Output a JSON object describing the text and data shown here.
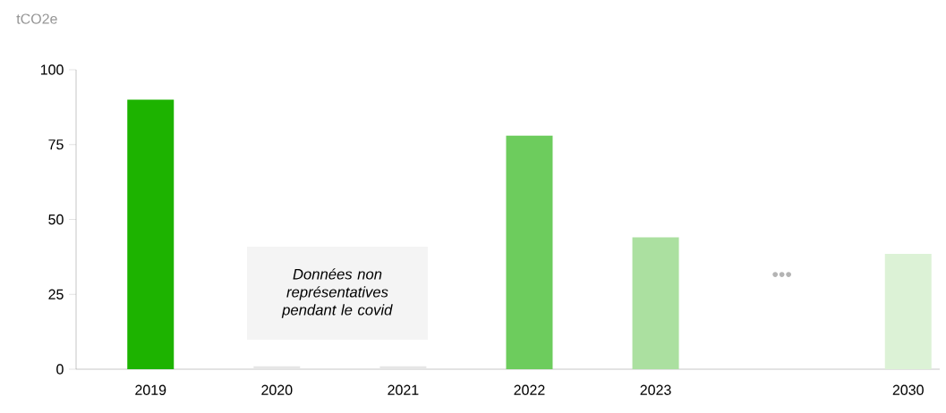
{
  "chart_data": {
    "type": "bar",
    "ylabel": "tCO2e",
    "categories": [
      "2019",
      "2020",
      "2021",
      "2022",
      "2023",
      null,
      "2030"
    ],
    "values": [
      90,
      1,
      1,
      78,
      44,
      null,
      38.5
    ],
    "colors": [
      "#1db300",
      "#e6e6e6",
      "#e6e6e6",
      "#6dcc5d",
      "#abe0a0",
      "#cccccc",
      "#dcf2d6"
    ],
    "ylim": [
      0,
      100
    ],
    "yticks": [
      0,
      25,
      50,
      75,
      100
    ],
    "annotations": [
      "*Données non représentatives pendant le covid*",
      "•••"
    ]
  }
}
